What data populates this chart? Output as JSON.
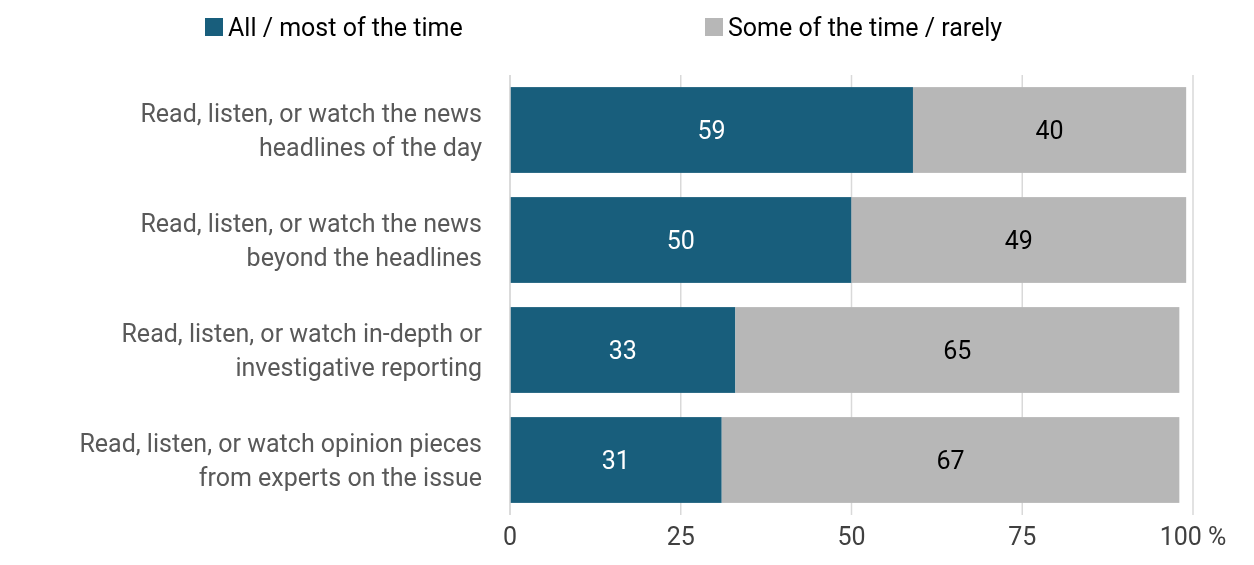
{
  "chart_data": {
    "type": "bar",
    "orientation": "horizontal",
    "stacked": true,
    "categories": [
      "Read, listen, or watch the news headlines of the day",
      "Read, listen, or watch the news beyond the headlines",
      "Read, listen, or watch in-depth or investigative reporting",
      "Read, listen, or watch opinion pieces from experts on the issue"
    ],
    "series": [
      {
        "name": "All / most of the time",
        "color": "#185e7c",
        "values": [
          59,
          50,
          33,
          31
        ]
      },
      {
        "name": "Some of the time / rarely",
        "color": "#b7b7b7",
        "values": [
          40,
          49,
          65,
          67
        ]
      }
    ],
    "xlim": [
      0,
      100
    ],
    "xticks": [
      0,
      25,
      50,
      75,
      {
        "value": 100,
        "label": "100 %"
      }
    ],
    "grid": "x",
    "legend": "top",
    "data_labels": true
  }
}
